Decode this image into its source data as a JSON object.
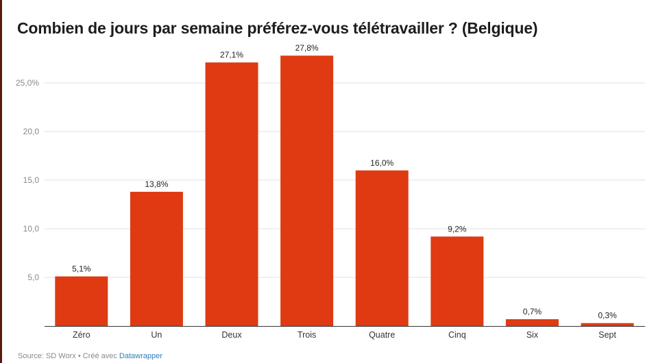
{
  "chart_data": {
    "type": "bar",
    "title": "Combien de jours par semaine préférez-vous télétravailler ? (Belgique)",
    "categories": [
      "Zéro",
      "Un",
      "Deux",
      "Trois",
      "Quatre",
      "Cinq",
      "Six",
      "Sept"
    ],
    "values": [
      5.1,
      13.8,
      27.1,
      27.8,
      16.0,
      9.2,
      0.7,
      0.3
    ],
    "value_labels": [
      "5,1%",
      "13,8%",
      "27,1%",
      "27,8%",
      "16,0%",
      "9,2%",
      "0,7%",
      "0,3%"
    ],
    "yticks": [
      5,
      10,
      15,
      20,
      25
    ],
    "ytick_labels": [
      "5,0",
      "10,0",
      "15,0",
      "20,0",
      "25,0%"
    ],
    "ylim": [
      0,
      28.5
    ],
    "xlabel": "",
    "ylabel": "",
    "grid": true,
    "bar_color": "#df3a12"
  },
  "footer": {
    "source_text": "Source: SD Worx • Créé avec ",
    "link_text": "Datawrapper",
    "link_color": "#2a7fb6"
  }
}
